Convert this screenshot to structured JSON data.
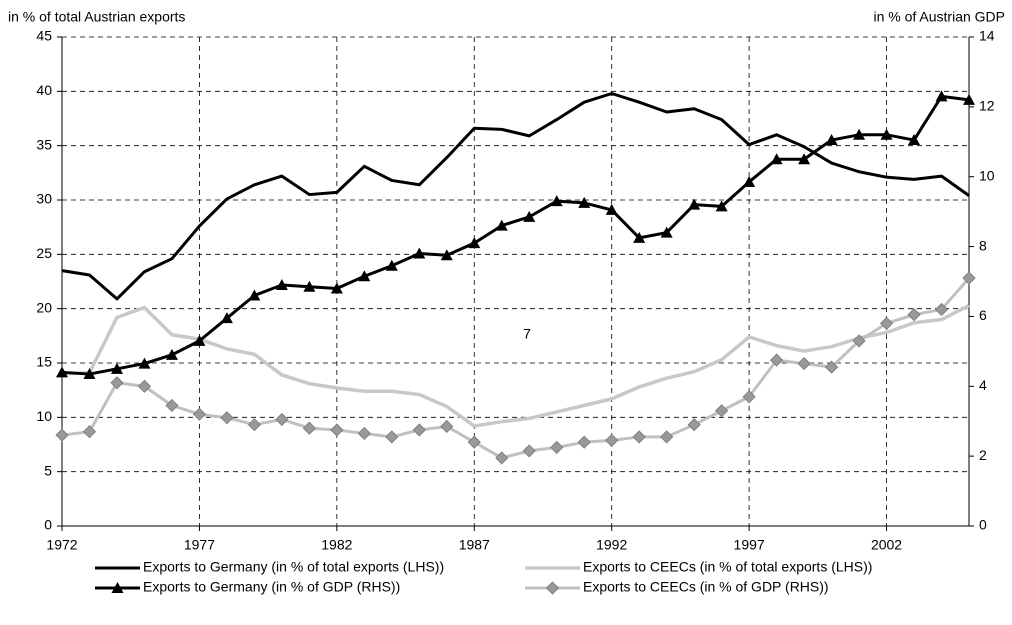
{
  "chart_data": {
    "type": "line",
    "y_label": "in % of total Austrian exports",
    "y2_label": "in % of  Austrian GDP",
    "annotation": "7",
    "x": [
      1972,
      1973,
      1974,
      1975,
      1976,
      1977,
      1978,
      1979,
      1980,
      1981,
      1982,
      1983,
      1984,
      1985,
      1986,
      1987,
      1988,
      1989,
      1990,
      1991,
      1992,
      1993,
      1994,
      1995,
      1996,
      1997,
      1998,
      1999,
      2000,
      2001,
      2002,
      2003,
      2004,
      2005
    ],
    "xlim": [
      1972,
      2005
    ],
    "xticks": [
      1972,
      1977,
      1982,
      1987,
      1992,
      1997,
      2002
    ],
    "ylim": [
      0,
      45
    ],
    "yticks": [
      0,
      5,
      10,
      15,
      20,
      25,
      30,
      35,
      40,
      45
    ],
    "y2lim": [
      0,
      14
    ],
    "y2ticks": [
      0,
      2,
      4,
      6,
      8,
      10,
      12,
      14
    ],
    "grid": true,
    "series": [
      {
        "name": "Exports to Germany (in % of total exports (LHS))",
        "color": "#000000",
        "width": 3,
        "marker": "none",
        "values": [
          23.5,
          23.1,
          20.9,
          23.4,
          24.6,
          27.6,
          30.1,
          31.4,
          32.2,
          30.5,
          30.7,
          33.1,
          31.8,
          31.4,
          33.9,
          36.6,
          36.5,
          35.9,
          37.4,
          39.0,
          39.8,
          39.0,
          38.1,
          38.4,
          37.4,
          35.1,
          36.0,
          34.9,
          33.4,
          32.6,
          32.1,
          31.9,
          32.2,
          30.4
        ]
      },
      {
        "name": "Exports to CEECs (in % of total exports (LHS))",
        "color": "#c8c8c8",
        "width": 3.5,
        "marker": "none",
        "values": [
          14.0,
          14.1,
          19.2,
          20.1,
          17.6,
          17.2,
          16.3,
          15.8,
          13.9,
          13.1,
          12.7,
          12.4,
          12.4,
          12.1,
          11.0,
          9.2,
          9.6,
          9.9,
          10.5,
          11.1,
          11.7,
          12.8,
          13.6,
          14.2,
          15.3,
          17.4,
          16.6,
          16.1,
          16.5,
          17.3,
          17.8,
          18.7,
          19.0,
          20.3
        ]
      },
      {
        "name": "Exports to Germany (in % of GDP (RHS))",
        "color": "#000000",
        "width": 3,
        "marker": "triangle",
        "axis": "y2",
        "values": [
          4.4,
          4.35,
          4.5,
          4.65,
          4.9,
          5.3,
          5.95,
          6.6,
          6.9,
          6.85,
          6.8,
          7.15,
          7.45,
          7.8,
          7.75,
          8.1,
          8.6,
          8.85,
          9.3,
          9.25,
          9.05,
          8.25,
          8.4,
          9.2,
          9.15,
          9.85,
          10.5,
          10.5,
          11.05,
          11.2,
          11.2,
          11.05,
          12.3,
          12.2
        ]
      },
      {
        "name": "Exports to CEECs (in % of GDP (RHS))",
        "color": "#c0c0c0",
        "marker_color": "#999999",
        "width": 3,
        "marker": "diamond",
        "axis": "y2",
        "values": [
          2.6,
          2.7,
          4.1,
          4.0,
          3.45,
          3.2,
          3.1,
          2.9,
          3.05,
          2.8,
          2.75,
          2.65,
          2.55,
          2.75,
          2.85,
          2.4,
          1.95,
          2.15,
          2.25,
          2.4,
          2.45,
          2.55,
          2.55,
          2.9,
          3.3,
          3.7,
          4.75,
          4.65,
          4.55,
          5.3,
          5.8,
          6.05,
          6.2,
          7.1
        ]
      }
    ]
  }
}
